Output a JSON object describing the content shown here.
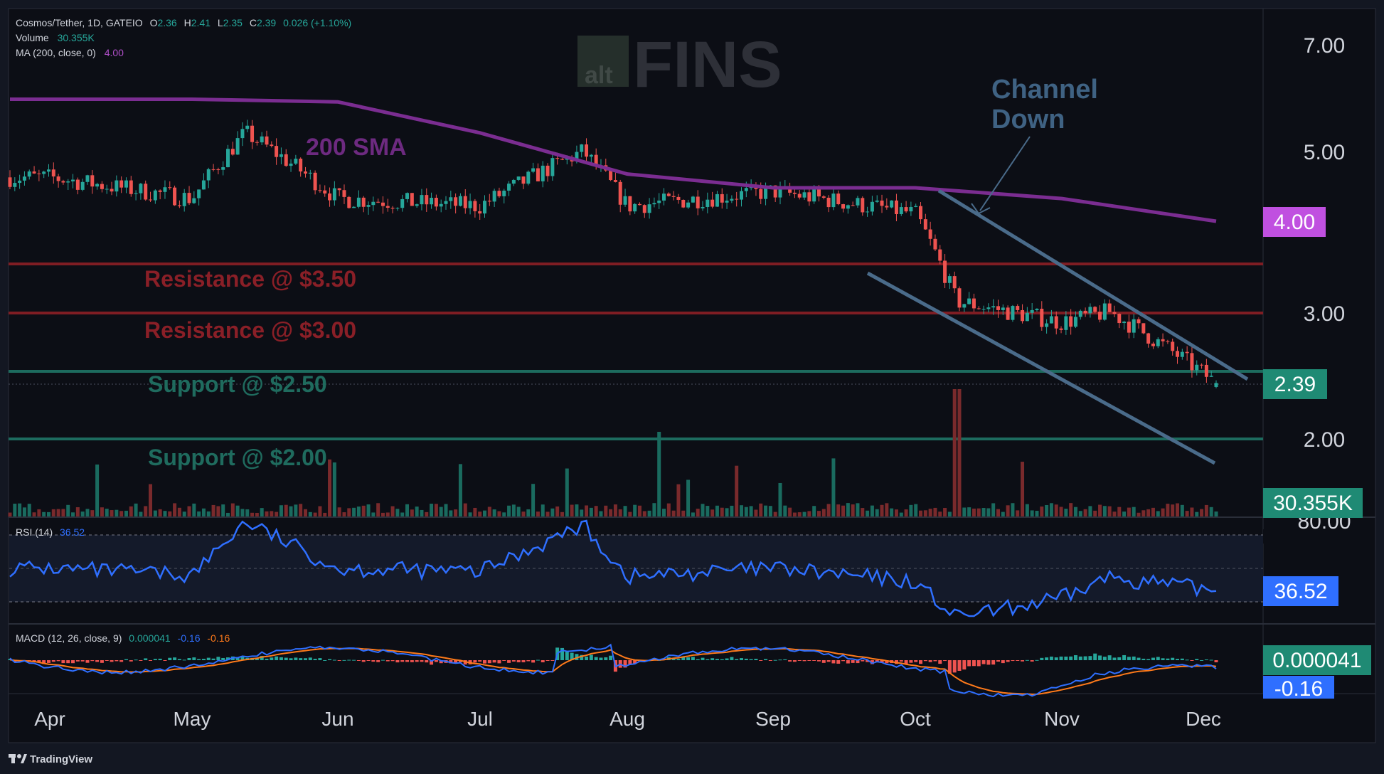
{
  "header": {
    "symbol_line": "Cosmos/Tether, 1D, GATEIO",
    "ohlc": {
      "O": "2.36",
      "H": "2.41",
      "L": "2.35",
      "C": "2.39",
      "change": "0.026 (+1.10%)"
    },
    "volume_label": "Volume",
    "volume_value": "30.355K",
    "ma_label": "MA (200, close, 0)",
    "ma_value": "4.00"
  },
  "watermark": {
    "small": "alt",
    "big": "FINS"
  },
  "annotations": {
    "sma_label": "200 SMA",
    "channel_label_1": "Channel",
    "channel_label_2": "Down",
    "resistance_350": "Resistance @ $3.50",
    "resistance_300": "Resistance @ $3.00",
    "support_250": "Support @ $2.50",
    "support_200": "Support @ $2.00"
  },
  "price_axis": {
    "ticks": [
      "7.00",
      "5.00",
      "3.00",
      "2.00"
    ],
    "partial_tick": "80.00",
    "badges": {
      "ma": "4.00",
      "last_price": "2.39",
      "volume": "30.355K",
      "rsi": "36.52",
      "macd_hist": "0.000041",
      "macd_line": "-0.16"
    }
  },
  "rsi_panel": {
    "label": "RSI (14)",
    "value": "36.52"
  },
  "macd_panel": {
    "label": "MACD (12, 26, close, 9)",
    "hist": "0.000041",
    "macd": "-0.16",
    "signal": "-0.16"
  },
  "time_axis": {
    "labels": [
      "Apr",
      "May",
      "Jun",
      "Jul",
      "Aug",
      "Sep",
      "Oct",
      "Nov",
      "Dec"
    ]
  },
  "footer": {
    "brand": "TradingView"
  },
  "colors": {
    "background": "#131722",
    "up": "#26a69a",
    "down": "#ef5350",
    "ma": "#9c27b0",
    "resistance": "#7f1d23",
    "support": "#1d6b5e",
    "channel": "#4a6b8a",
    "rsi": "#2962ff"
  },
  "chart_data": [
    {
      "type": "candlestick",
      "title": "Cosmos/Tether, 1D, GATEIO",
      "x": [
        "Apr",
        "May",
        "Jun",
        "Jul",
        "Aug",
        "Sep",
        "Oct",
        "Nov",
        "Dec"
      ],
      "y_scale": "log",
      "y_ticks": [
        7.0,
        5.0,
        3.0,
        2.0
      ],
      "key_points": [
        {
          "x": "Apr",
          "close": 4.6
        },
        {
          "x": "May",
          "close": 4.3
        },
        {
          "x": "May (mid)",
          "close": 5.3
        },
        {
          "x": "Jun",
          "close": 4.3
        },
        {
          "x": "Jul",
          "close": 4.2
        },
        {
          "x": "Jul (mid)",
          "close": 5.0
        },
        {
          "x": "Aug",
          "close": 4.2
        },
        {
          "x": "Sep",
          "close": 4.4
        },
        {
          "x": "Oct",
          "close": 4.1
        },
        {
          "x": "Oct (crash)",
          "close": 3.1
        },
        {
          "x": "Nov",
          "close": 2.9
        },
        {
          "x": "Nov (mid)",
          "close": 3.0
        },
        {
          "x": "Dec",
          "close": 2.39
        }
      ],
      "last": {
        "open": 2.36,
        "high": 2.41,
        "low": 2.35,
        "close": 2.39
      },
      "horizontal_levels": [
        {
          "label": "Resistance @ $3.50",
          "value": 3.5
        },
        {
          "label": "Resistance @ $3.00",
          "value": 3.0
        },
        {
          "label": "Support @ $2.50",
          "value": 2.5
        },
        {
          "label": "Support @ $2.00",
          "value": 2.0
        }
      ],
      "sma200": {
        "label": "200 SMA",
        "points": [
          {
            "x": "Apr",
            "y": 5.9
          },
          {
            "x": "May",
            "y": 5.9
          },
          {
            "x": "Jun",
            "y": 5.85
          },
          {
            "x": "Jul",
            "y": 5.3
          },
          {
            "x": "Aug",
            "y": 4.65
          },
          {
            "x": "Sep",
            "y": 4.45
          },
          {
            "x": "Oct",
            "y": 4.45
          },
          {
            "x": "Nov",
            "y": 4.3
          },
          {
            "x": "Dec",
            "y": 4.0
          }
        ]
      },
      "channel": {
        "label": "Channel Down",
        "upper": [
          {
            "x": "Oct",
            "y": 4.4
          },
          {
            "x": "Dec",
            "y": 2.45
          }
        ],
        "lower": [
          {
            "x": "Sep",
            "y": 3.45
          },
          {
            "x": "Dec",
            "y": 1.8
          }
        ]
      }
    },
    {
      "type": "bar",
      "title": "Volume",
      "last_value": "30.355K"
    },
    {
      "type": "line",
      "title": "RSI (14)",
      "ylim": [
        20,
        80
      ],
      "levels": [
        70,
        50,
        30
      ],
      "points": [
        {
          "x": "Apr",
          "y": 50
        },
        {
          "x": "May",
          "y": 46
        },
        {
          "x": "May (mid)",
          "y": 78
        },
        {
          "x": "Jun",
          "y": 50
        },
        {
          "x": "Jul",
          "y": 48
        },
        {
          "x": "Jul (mid)",
          "y": 76
        },
        {
          "x": "Aug",
          "y": 45
        },
        {
          "x": "Sep",
          "y": 50
        },
        {
          "x": "Oct",
          "y": 42
        },
        {
          "x": "Oct (crash)",
          "y": 20
        },
        {
          "x": "Nov",
          "y": 32
        },
        {
          "x": "Nov (mid)",
          "y": 45
        },
        {
          "x": "Dec",
          "y": 36.52
        }
      ],
      "last_value": 36.52
    },
    {
      "type": "line",
      "title": "MACD (12, 26, close, 9)",
      "series": [
        {
          "name": "MACD",
          "last_value": -0.16
        },
        {
          "name": "Signal",
          "last_value": -0.16
        },
        {
          "name": "Histogram",
          "last_value": 4.1e-05
        }
      ]
    }
  ]
}
